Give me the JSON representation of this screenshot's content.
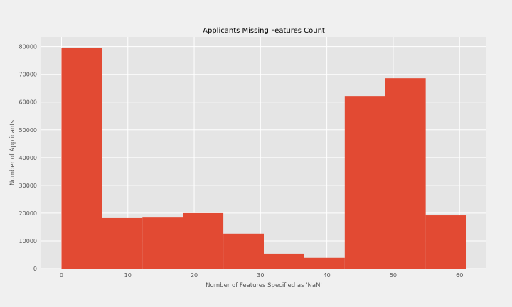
{
  "chart_data": {
    "type": "bar",
    "title": "Applicants Missing Features Count",
    "xlabel": "Number of Features Specified as 'NaN'",
    "ylabel": "Number of Applicants",
    "xlim": [
      -3.05,
      64.05
    ],
    "ylim": [
      0,
      83500
    ],
    "xticks": [
      0,
      10,
      20,
      30,
      40,
      50,
      60
    ],
    "yticks": [
      0,
      10000,
      20000,
      30000,
      40000,
      50000,
      60000,
      70000,
      80000
    ],
    "bins": [
      {
        "x0": 0.0,
        "x1": 6.1,
        "value": 79500
      },
      {
        "x0": 6.1,
        "x1": 12.2,
        "value": 18200
      },
      {
        "x0": 12.2,
        "x1": 18.3,
        "value": 18400
      },
      {
        "x0": 18.3,
        "x1": 24.4,
        "value": 20000
      },
      {
        "x0": 24.4,
        "x1": 30.5,
        "value": 12600
      },
      {
        "x0": 30.5,
        "x1": 36.6,
        "value": 5400
      },
      {
        "x0": 36.6,
        "x1": 42.7,
        "value": 3900
      },
      {
        "x0": 42.7,
        "x1": 48.8,
        "value": 62200
      },
      {
        "x0": 48.8,
        "x1": 54.9,
        "value": 68600
      },
      {
        "x0": 54.9,
        "x1": 61.0,
        "value": 19200
      }
    ],
    "grid": true,
    "colors": {
      "bar": "#e24a33",
      "plot_bg": "#e5e5e5",
      "figure_bg": "#f0f0f0",
      "grid": "#ffffff"
    }
  }
}
